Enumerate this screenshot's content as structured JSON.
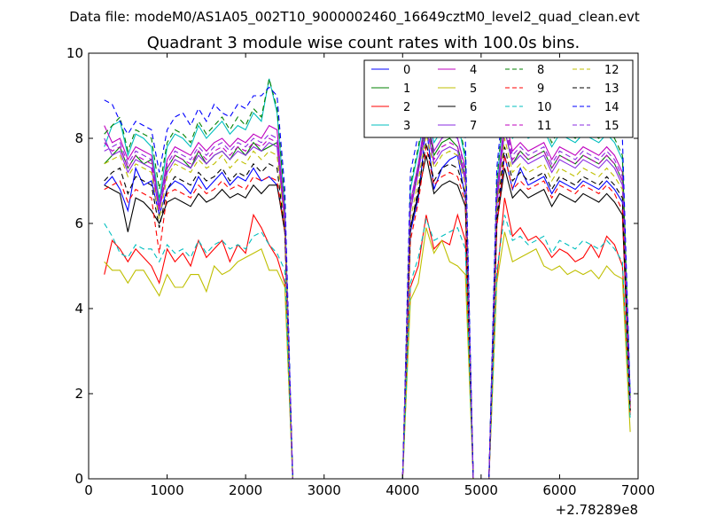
{
  "suptitle": "Data file: modeM0/AS1A05_002T10_9000002460_16649cztM0_level2_quad_clean.evt",
  "chart_data": {
    "type": "line",
    "title": "Quadrant 3 module wise count rates with 100.0s bins.",
    "xlabel": "",
    "ylabel": "",
    "x_offset_label": "+2.78289e8",
    "xlim": [
      0,
      7000
    ],
    "ylim": [
      0,
      10
    ],
    "xticks": [
      "0",
      "1000",
      "2000",
      "3000",
      "4000",
      "5000",
      "6000",
      "7000"
    ],
    "yticks": [
      "0",
      "2",
      "4",
      "6",
      "8",
      "10"
    ],
    "legend_position": "top-right",
    "x": [
      200,
      300,
      400,
      500,
      600,
      700,
      800,
      900,
      1000,
      1100,
      1200,
      1300,
      1400,
      1500,
      1600,
      1700,
      1800,
      1900,
      2000,
      2100,
      2200,
      2300,
      2400,
      2500,
      2600,
      2700,
      4000,
      4100,
      4200,
      4300,
      4400,
      4500,
      4600,
      4700,
      4800,
      4900,
      5100,
      5200,
      5300,
      5400,
      5500,
      5600,
      5700,
      5800,
      5900,
      6000,
      6100,
      6200,
      6300,
      6400,
      6500,
      6600,
      6700,
      6800,
      6900
    ],
    "series": [
      {
        "name": "0",
        "color": "#0000ff",
        "dash": "solid",
        "values": [
          6.9,
          7.1,
          6.8,
          6.3,
          7.3,
          6.9,
          7.0,
          6.2,
          6.8,
          7.0,
          6.9,
          6.7,
          7.1,
          6.8,
          7.0,
          7.2,
          6.9,
          7.1,
          7.0,
          7.3,
          7.0,
          7.1,
          6.9,
          5.9,
          0.0,
          0.0,
          0.0,
          5.8,
          6.6,
          8.3,
          6.8,
          7.3,
          7.5,
          7.6,
          6.6,
          0.0,
          0.0,
          6.0,
          7.6,
          6.8,
          7.3,
          6.9,
          7.0,
          7.1,
          6.7,
          7.0,
          6.9,
          6.8,
          7.0,
          6.9,
          6.8,
          7.0,
          6.8,
          6.5,
          1.7
        ]
      },
      {
        "name": "1",
        "color": "#008000",
        "dash": "solid",
        "values": [
          7.4,
          7.6,
          7.8,
          7.3,
          7.6,
          7.4,
          7.5,
          6.6,
          7.3,
          7.6,
          7.5,
          7.3,
          7.7,
          7.4,
          7.6,
          7.7,
          7.5,
          7.8,
          7.6,
          7.9,
          7.7,
          7.8,
          7.9,
          6.1,
          0.0,
          0.0,
          0.0,
          6.3,
          7.3,
          8.5,
          7.6,
          7.9,
          8.0,
          7.8,
          7.1,
          0.0,
          0.0,
          6.5,
          8.2,
          7.4,
          7.7,
          7.5,
          7.6,
          7.7,
          7.3,
          7.6,
          7.5,
          7.4,
          7.6,
          7.5,
          7.4,
          7.6,
          7.4,
          7.0,
          1.8
        ]
      },
      {
        "name": "2",
        "color": "#ff0000",
        "dash": "solid",
        "values": [
          4.8,
          5.6,
          5.4,
          5.1,
          5.4,
          5.2,
          5.0,
          4.6,
          5.4,
          5.1,
          5.3,
          5.0,
          5.6,
          5.2,
          5.4,
          5.6,
          5.1,
          5.5,
          5.3,
          6.2,
          5.9,
          5.5,
          5.2,
          4.6,
          0.0,
          0.0,
          0.0,
          4.5,
          5.0,
          6.2,
          5.4,
          5.6,
          5.5,
          6.2,
          5.6,
          0.0,
          0.0,
          4.7,
          6.6,
          5.7,
          5.9,
          5.6,
          5.7,
          5.5,
          5.2,
          5.4,
          5.3,
          5.1,
          5.2,
          5.5,
          5.2,
          5.7,
          5.5,
          5.0,
          1.5
        ]
      },
      {
        "name": "3",
        "color": "#00bfbf",
        "dash": "solid",
        "values": [
          7.8,
          8.3,
          8.4,
          7.6,
          8.1,
          8.0,
          7.8,
          6.5,
          7.8,
          8.1,
          8.0,
          7.8,
          8.3,
          8.0,
          8.2,
          8.4,
          8.1,
          8.3,
          8.2,
          8.6,
          8.4,
          9.4,
          8.6,
          6.4,
          0.0,
          0.0,
          0.0,
          6.8,
          7.7,
          8.7,
          7.9,
          8.2,
          8.3,
          8.4,
          7.5,
          0.0,
          0.0,
          6.9,
          8.9,
          8.0,
          8.2,
          8.0,
          8.1,
          8.2,
          7.8,
          8.1,
          8.0,
          7.9,
          8.1,
          8.0,
          7.9,
          8.1,
          7.9,
          7.5,
          1.9
        ]
      },
      {
        "name": "4",
        "color": "#bf00bf",
        "dash": "solid",
        "values": [
          8.3,
          7.9,
          8.0,
          7.5,
          7.8,
          7.7,
          7.6,
          6.4,
          7.5,
          7.8,
          7.7,
          7.6,
          7.9,
          7.7,
          7.9,
          8.0,
          7.8,
          8.0,
          7.9,
          8.1,
          8.0,
          8.3,
          8.2,
          6.2,
          0.0,
          0.0,
          0.0,
          6.5,
          7.4,
          8.6,
          7.7,
          8.0,
          8.1,
          8.0,
          7.3,
          0.0,
          0.0,
          6.7,
          8.5,
          7.7,
          7.9,
          7.7,
          7.8,
          7.9,
          7.5,
          7.8,
          7.7,
          7.6,
          7.8,
          7.7,
          7.6,
          7.8,
          7.6,
          7.2,
          1.8
        ]
      },
      {
        "name": "5",
        "color": "#bfbf00",
        "dash": "solid",
        "values": [
          5.1,
          4.9,
          4.9,
          4.6,
          4.9,
          4.9,
          4.6,
          4.3,
          4.8,
          4.5,
          4.5,
          4.8,
          4.8,
          4.4,
          5.0,
          4.8,
          4.9,
          5.1,
          5.2,
          5.3,
          5.4,
          4.9,
          4.9,
          4.5,
          0.0,
          0.0,
          0.0,
          4.2,
          4.6,
          5.9,
          5.3,
          5.6,
          5.1,
          5.0,
          4.8,
          0.0,
          0.0,
          4.6,
          5.8,
          5.1,
          5.2,
          5.3,
          5.4,
          5.0,
          4.9,
          5.0,
          4.8,
          4.9,
          4.8,
          4.9,
          4.7,
          5.0,
          4.8,
          4.7,
          1.1
        ]
      },
      {
        "name": "6",
        "color": "#000000",
        "dash": "solid",
        "values": [
          6.9,
          6.8,
          6.7,
          5.8,
          6.6,
          6.5,
          6.3,
          6.0,
          6.5,
          6.6,
          6.5,
          6.4,
          6.7,
          6.5,
          6.6,
          6.8,
          6.6,
          6.7,
          6.6,
          6.9,
          6.7,
          6.9,
          6.9,
          5.8,
          0.0,
          0.0,
          0.0,
          5.9,
          6.7,
          7.6,
          6.7,
          6.9,
          7.0,
          6.9,
          6.4,
          0.0,
          0.0,
          6.0,
          7.3,
          6.6,
          6.8,
          6.6,
          6.7,
          6.8,
          6.4,
          6.7,
          6.6,
          6.5,
          6.7,
          6.6,
          6.5,
          6.7,
          6.5,
          6.2,
          1.6
        ]
      },
      {
        "name": "7",
        "color": "#8a2be2",
        "dash": "solid",
        "values": [
          8.0,
          7.6,
          7.7,
          7.2,
          7.5,
          7.4,
          7.3,
          6.3,
          7.2,
          7.5,
          7.4,
          7.3,
          7.6,
          7.4,
          7.6,
          7.7,
          7.5,
          7.7,
          7.6,
          7.8,
          7.7,
          7.9,
          7.8,
          6.0,
          0.0,
          0.0,
          0.0,
          6.3,
          7.2,
          8.3,
          7.4,
          7.7,
          7.8,
          7.7,
          7.0,
          0.0,
          0.0,
          6.4,
          8.2,
          7.4,
          7.6,
          7.4,
          7.5,
          7.6,
          7.2,
          7.5,
          7.4,
          7.3,
          7.5,
          7.4,
          7.3,
          7.5,
          7.3,
          6.9,
          1.7
        ]
      },
      {
        "name": "8",
        "color": "#008000",
        "dash": "dashed",
        "values": [
          8.1,
          8.3,
          8.5,
          7.7,
          8.2,
          8.1,
          8.0,
          6.8,
          7.9,
          8.2,
          8.1,
          7.9,
          8.4,
          8.1,
          8.3,
          8.5,
          8.2,
          8.5,
          8.3,
          8.7,
          8.5,
          9.4,
          8.7,
          6.5,
          0.0,
          0.0,
          0.0,
          6.9,
          7.8,
          8.9,
          8.0,
          8.3,
          8.4,
          8.5,
          7.6,
          0.0,
          0.0,
          7.0,
          9.0,
          8.1,
          8.3,
          8.1,
          8.2,
          8.3,
          7.9,
          8.2,
          8.1,
          8.0,
          8.2,
          8.1,
          8.0,
          8.2,
          8.0,
          7.6,
          1.9
        ]
      },
      {
        "name": "9",
        "color": "#ff0000",
        "dash": "dashed",
        "values": [
          6.8,
          6.9,
          7.0,
          6.5,
          6.8,
          6.7,
          6.6,
          5.3,
          6.7,
          6.8,
          6.7,
          6.6,
          6.9,
          6.7,
          6.8,
          7.0,
          6.8,
          6.9,
          6.8,
          7.1,
          7.0,
          7.1,
          7.0,
          5.8,
          0.0,
          0.0,
          0.0,
          5.6,
          6.5,
          7.8,
          6.9,
          7.1,
          7.2,
          7.1,
          6.5,
          0.0,
          0.0,
          5.9,
          7.6,
          6.8,
          7.0,
          6.8,
          6.9,
          7.0,
          6.6,
          6.9,
          6.8,
          6.7,
          6.9,
          6.8,
          6.7,
          6.9,
          6.7,
          6.3,
          1.6
        ]
      },
      {
        "name": "10",
        "color": "#00bfbf",
        "dash": "dashed",
        "values": [
          6.0,
          5.7,
          5.3,
          5.2,
          5.5,
          5.4,
          5.4,
          5.1,
          5.5,
          5.3,
          5.4,
          5.2,
          5.6,
          5.3,
          5.5,
          5.6,
          5.4,
          5.5,
          5.4,
          5.7,
          5.8,
          5.5,
          5.3,
          4.9,
          0.0,
          0.0,
          0.0,
          4.6,
          5.2,
          6.1,
          5.6,
          5.7,
          5.8,
          5.9,
          5.4,
          0.0,
          0.0,
          4.9,
          6.2,
          5.6,
          5.7,
          5.5,
          5.6,
          5.7,
          5.3,
          5.6,
          5.5,
          5.4,
          5.6,
          5.5,
          5.4,
          5.6,
          5.4,
          5.1,
          1.4
        ]
      },
      {
        "name": "11",
        "color": "#bf00bf",
        "dash": "dashed",
        "values": [
          7.9,
          7.7,
          7.8,
          7.3,
          7.6,
          7.5,
          7.4,
          6.3,
          7.3,
          7.6,
          7.5,
          7.4,
          7.7,
          7.5,
          7.7,
          7.8,
          7.6,
          7.8,
          7.7,
          7.9,
          7.8,
          8.0,
          7.9,
          6.1,
          0.0,
          0.0,
          0.0,
          6.4,
          7.3,
          8.4,
          7.5,
          7.8,
          7.9,
          7.8,
          7.1,
          0.0,
          0.0,
          6.5,
          8.3,
          7.5,
          7.7,
          7.5,
          7.6,
          7.7,
          7.3,
          7.6,
          7.5,
          7.4,
          7.6,
          7.5,
          7.4,
          7.6,
          7.4,
          7.0,
          1.8
        ]
      },
      {
        "name": "12",
        "color": "#bfbf00",
        "dash": "dashed",
        "values": [
          7.4,
          7.5,
          7.6,
          7.1,
          7.4,
          7.3,
          7.2,
          6.1,
          7.1,
          7.4,
          7.3,
          7.2,
          7.5,
          7.3,
          7.4,
          7.6,
          7.3,
          7.5,
          7.4,
          7.7,
          7.5,
          7.7,
          7.6,
          5.9,
          0.0,
          0.0,
          0.0,
          6.1,
          7.0,
          8.1,
          7.3,
          7.6,
          7.7,
          7.6,
          6.9,
          0.0,
          0.0,
          6.3,
          8.0,
          7.2,
          7.4,
          7.2,
          7.3,
          7.4,
          7.0,
          7.3,
          7.2,
          7.1,
          7.3,
          7.2,
          7.1,
          7.3,
          7.1,
          6.8,
          1.7
        ]
      },
      {
        "name": "13",
        "color": "#000000",
        "dash": "dashed",
        "values": [
          7.0,
          7.2,
          7.3,
          6.7,
          7.1,
          7.0,
          6.9,
          5.9,
          6.8,
          7.1,
          7.0,
          6.9,
          7.2,
          7.0,
          7.1,
          7.3,
          7.0,
          7.2,
          7.1,
          7.4,
          7.2,
          7.4,
          7.3,
          5.8,
          0.0,
          0.0,
          0.0,
          5.9,
          6.8,
          7.9,
          7.0,
          7.3,
          7.4,
          7.3,
          6.7,
          0.0,
          0.0,
          6.1,
          7.8,
          7.0,
          7.2,
          7.0,
          7.1,
          7.2,
          6.8,
          7.1,
          7.0,
          6.9,
          7.1,
          7.0,
          6.9,
          7.1,
          6.9,
          6.6,
          1.6
        ]
      },
      {
        "name": "14",
        "color": "#0000ff",
        "dash": "dashed",
        "values": [
          8.9,
          8.8,
          8.4,
          8.1,
          8.4,
          8.3,
          8.2,
          7.2,
          8.2,
          8.5,
          8.6,
          8.3,
          8.7,
          8.4,
          8.8,
          8.6,
          8.5,
          8.8,
          8.7,
          9.0,
          9.0,
          9.2,
          9.0,
          6.8,
          0.0,
          0.0,
          0.0,
          7.2,
          8.1,
          9.4,
          8.4,
          8.8,
          8.9,
          9.0,
          8.0,
          0.0,
          0.0,
          7.3,
          9.2,
          8.4,
          8.7,
          8.5,
          8.6,
          8.7,
          8.3,
          8.6,
          8.5,
          8.4,
          8.6,
          8.5,
          8.4,
          8.6,
          8.4,
          8.0,
          2.0
        ]
      },
      {
        "name": "15",
        "color": "#8a2be2",
        "dash": "dashed",
        "values": [
          7.7,
          7.8,
          7.9,
          7.4,
          7.7,
          7.6,
          7.5,
          6.4,
          7.4,
          7.7,
          7.6,
          7.5,
          7.8,
          7.6,
          7.8,
          7.9,
          7.7,
          7.9,
          7.8,
          8.0,
          7.9,
          8.1,
          8.0,
          6.2,
          0.0,
          0.0,
          0.0,
          6.5,
          7.4,
          8.6,
          7.7,
          8.0,
          8.1,
          8.0,
          7.2,
          0.0,
          0.0,
          6.6,
          8.4,
          7.6,
          7.8,
          7.6,
          7.7,
          7.8,
          7.4,
          7.7,
          7.6,
          7.5,
          7.7,
          7.6,
          7.5,
          7.7,
          7.5,
          7.1,
          1.8
        ]
      }
    ]
  }
}
